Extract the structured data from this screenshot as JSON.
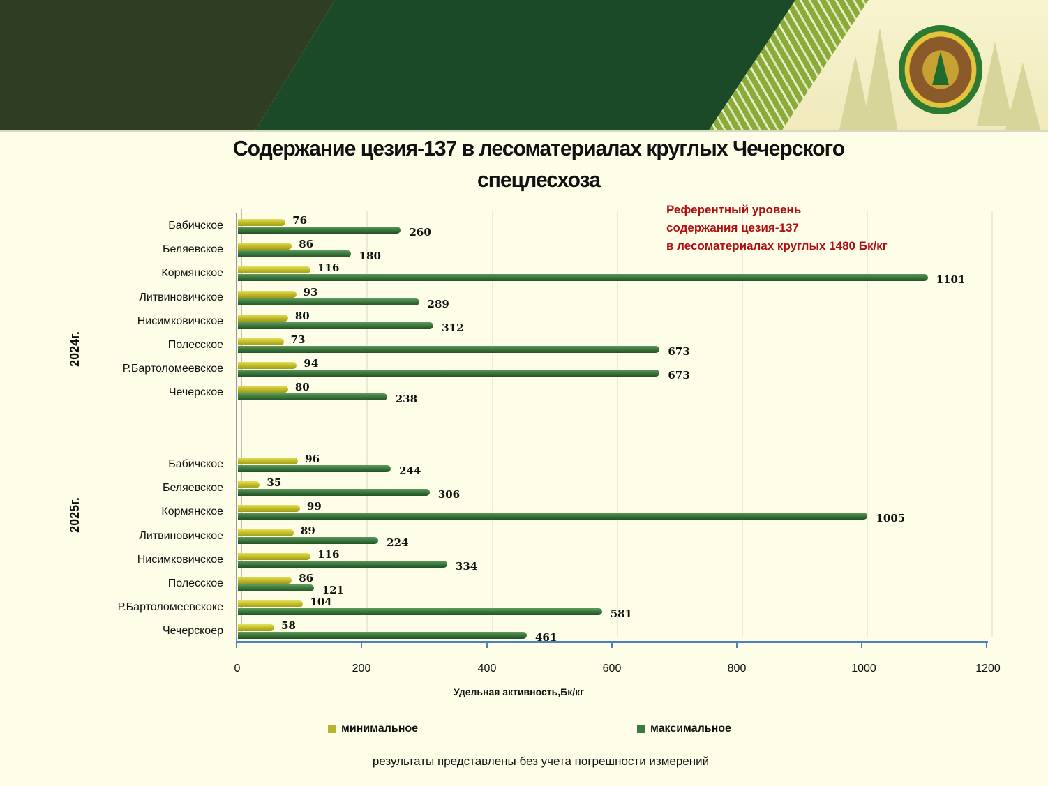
{
  "header": {
    "banner_emblem": "forestry-emblem"
  },
  "title": {
    "line1": "Содержание цезия-137 в лесоматериалах круглых Чечерского",
    "line2": "спецлесхоза"
  },
  "reference_note": {
    "line1": "Референтный уровень",
    "line2": "содержания цезия-137",
    "line3": "в лесоматериалах круглых  1480 Бк/кг"
  },
  "axis": {
    "xlabel": "Удельная активность,Бк/кг",
    "ticks": [
      "0",
      "200",
      "400",
      "600",
      "800",
      "1000",
      "1200"
    ]
  },
  "groups": [
    {
      "year": "2024г.",
      "rows": [
        {
          "label": "Бабичское",
          "min": "76",
          "max": "260"
        },
        {
          "label": "Беляевское",
          "min": "86",
          "max": "180"
        },
        {
          "label": "Кормянское",
          "min": "116",
          "max": "1101"
        },
        {
          "label": "Литвиновичское",
          "min": "93",
          "max": "289"
        },
        {
          "label": "Нисимковичское",
          "min": "80",
          "max": "312"
        },
        {
          "label": "Полесское",
          "min": "73",
          "max": "673"
        },
        {
          "label": "Р.Бартоломеевское",
          "min": "94",
          "max": "673"
        },
        {
          "label": "Чечерское",
          "min": "80",
          "max": "238"
        }
      ]
    },
    {
      "year": "2025г.",
      "rows": [
        {
          "label": "Бабичское",
          "min": "96",
          "max": "244"
        },
        {
          "label": "Беляевское",
          "min": "35",
          "max": "306"
        },
        {
          "label": "Кормянское",
          "min": "99",
          "max": "1005"
        },
        {
          "label": "Литвиновичское",
          "min": "89",
          "max": "224"
        },
        {
          "label": "Нисимковичское",
          "min": "116",
          "max": "334"
        },
        {
          "label": "Полесское",
          "min": "86",
          "max": "121"
        },
        {
          "label": "Р.Бартоломеевскоке",
          "min": "104",
          "max": "581"
        },
        {
          "label": "Чечерскоер",
          "min": "58",
          "max": "461"
        }
      ]
    }
  ],
  "legend": {
    "min_label": "минимальное",
    "max_label": "максимальное",
    "min_color": "#b8b42e",
    "max_color": "#3c7a3e"
  },
  "footnote": "результаты представлены без учета погрешности измерений",
  "chart_data": {
    "type": "bar",
    "orientation": "horizontal",
    "title": "Содержание цезия-137 в лесоматериалах круглых Чечерского спецлесхоза",
    "xlabel": "Удельная активность,Бк/кг",
    "ylabel": "",
    "xlim": [
      0,
      1200
    ],
    "xticks": [
      0,
      200,
      400,
      600,
      800,
      1000,
      1200
    ],
    "grid": true,
    "legend_position": "bottom",
    "annotation": "Референтный уровень содержания цезия-137 в лесоматериалах круглых 1480 Бк/кг",
    "category_groups": [
      "2024г.",
      "2025г."
    ],
    "categories": [
      "2024г. Бабичское",
      "2024г. Беляевское",
      "2024г. Кормянское",
      "2024г. Литвиновичское",
      "2024г. Нисимковичское",
      "2024г. Полесское",
      "2024г. Р.Бартоломеевское",
      "2024г. Чечерское",
      "2025г. Бабичское",
      "2025г. Беляевское",
      "2025г. Кормянское",
      "2025г. Литвиновичское",
      "2025г. Нисимковичское",
      "2025г. Полесское",
      "2025г. Р.Бартоломеевскоке",
      "2025г. Чечерскоер"
    ],
    "series": [
      {
        "name": "минимальное",
        "color": "#b8b42e",
        "values": [
          76,
          86,
          116,
          93,
          80,
          73,
          94,
          80,
          96,
          35,
          99,
          89,
          116,
          86,
          104,
          58
        ]
      },
      {
        "name": "максимальное",
        "color": "#3c7a3e",
        "values": [
          260,
          180,
          1101,
          289,
          312,
          673,
          673,
          238,
          244,
          306,
          1005,
          224,
          334,
          121,
          581,
          461
        ]
      }
    ]
  }
}
